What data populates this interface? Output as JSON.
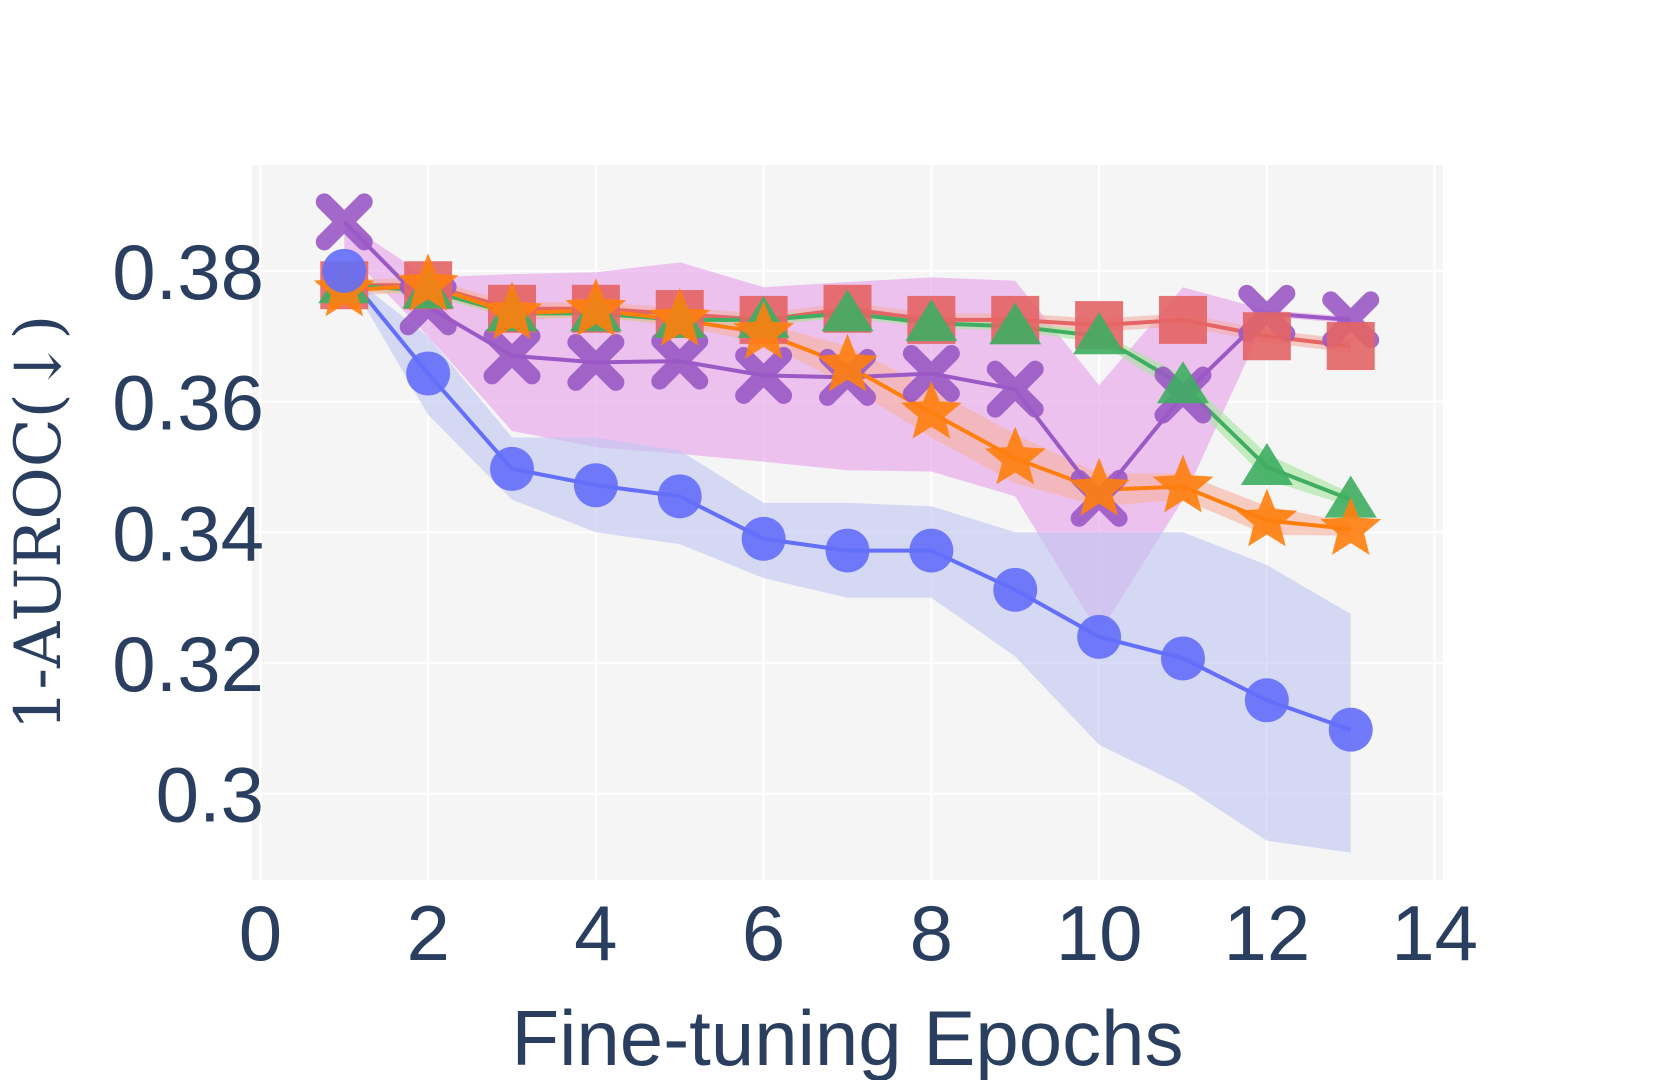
{
  "chart_data": {
    "type": "line",
    "xlabel": "Fine-tuning Epochs",
    "ylabel": "1-AUROC(↓)",
    "xlim": [
      -0.1,
      14.1
    ],
    "ylim": [
      0.2868,
      0.3962
    ],
    "x_ticks": [
      "0",
      "2",
      "4",
      "6",
      "8",
      "10",
      "12",
      "14"
    ],
    "y_ticks": [
      "0.3",
      "0.32",
      "0.34",
      "0.36",
      "0.38"
    ],
    "grid": true,
    "plot_background": "#f5f5f5",
    "series": [
      {
        "marker": "x",
        "color": "#9b59c6",
        "fill": "#e7a2ea",
        "x": [
          1,
          2,
          3,
          4,
          5,
          6,
          7,
          8,
          9,
          10,
          11,
          12,
          13
        ],
        "values": [
          0.3875,
          0.3745,
          0.367,
          0.366,
          0.3662,
          0.364,
          0.3637,
          0.3643,
          0.3619,
          0.3452,
          0.361,
          0.3735,
          0.3725
        ],
        "upper": [
          0.3875,
          0.379,
          0.3795,
          0.3798,
          0.3813,
          0.3775,
          0.3783,
          0.379,
          0.3785,
          0.3625,
          0.3775,
          0.374,
          0.373
        ],
        "lower": [
          0.3833,
          0.37,
          0.3555,
          0.353,
          0.352,
          0.3508,
          0.3495,
          0.3493,
          0.3455,
          0.3245,
          0.345,
          0.373,
          0.372
        ]
      },
      {
        "marker": "square",
        "color": "#e56565",
        "fill": "#f3b0a8",
        "x": [
          1,
          2,
          3,
          4,
          5,
          6,
          7,
          8,
          9,
          10,
          11,
          12,
          13
        ],
        "values": [
          0.3778,
          0.3778,
          0.3742,
          0.3742,
          0.3734,
          0.3725,
          0.3742,
          0.3725,
          0.3725,
          0.3717,
          0.3725,
          0.37,
          0.3685
        ],
        "upper": [
          0.3788,
          0.3788,
          0.3752,
          0.3752,
          0.3744,
          0.3735,
          0.3752,
          0.3735,
          0.3735,
          0.3727,
          0.3735,
          0.371,
          0.3695
        ],
        "lower": [
          0.3768,
          0.3768,
          0.3732,
          0.3732,
          0.3724,
          0.3715,
          0.3732,
          0.3715,
          0.3715,
          0.3707,
          0.3715,
          0.369,
          0.3675
        ]
      },
      {
        "marker": "triangle-up",
        "color": "#3fae62",
        "fill": "#a6e6a0",
        "x": [
          1,
          2,
          3,
          4,
          5,
          6,
          7,
          8,
          9,
          10,
          11,
          12,
          13
        ],
        "values": [
          0.3778,
          0.377,
          0.3735,
          0.3735,
          0.3725,
          0.3725,
          0.3735,
          0.372,
          0.3715,
          0.37,
          0.3625,
          0.35,
          0.345
        ],
        "upper": [
          0.3785,
          0.3778,
          0.3742,
          0.3742,
          0.3732,
          0.3732,
          0.3742,
          0.3727,
          0.3722,
          0.3707,
          0.364,
          0.352,
          0.346
        ],
        "lower": [
          0.3771,
          0.3762,
          0.3728,
          0.3728,
          0.3718,
          0.3718,
          0.3728,
          0.3713,
          0.3708,
          0.369,
          0.361,
          0.348,
          0.344
        ]
      },
      {
        "marker": "star",
        "color": "#ff7f0e",
        "fill": "#f7b3a0",
        "x": [
          1,
          2,
          3,
          4,
          5,
          6,
          7,
          8,
          9,
          10,
          11,
          12,
          13
        ],
        "values": [
          0.377,
          0.3778,
          0.3735,
          0.374,
          0.3725,
          0.3705,
          0.3655,
          0.3583,
          0.3513,
          0.3465,
          0.347,
          0.3418,
          0.3405
        ],
        "upper": [
          0.3778,
          0.3788,
          0.3745,
          0.375,
          0.3735,
          0.372,
          0.3685,
          0.362,
          0.355,
          0.349,
          0.349,
          0.344,
          0.3415
        ],
        "lower": [
          0.3762,
          0.3768,
          0.3725,
          0.373,
          0.3715,
          0.369,
          0.3625,
          0.3545,
          0.3475,
          0.344,
          0.345,
          0.3396,
          0.3395
        ]
      },
      {
        "marker": "circle",
        "color": "#636efa",
        "fill": "#c1c6f0",
        "x": [
          1,
          2,
          3,
          4,
          5,
          6,
          7,
          8,
          9,
          10,
          11,
          12,
          13
        ],
        "values": [
          0.38,
          0.3643,
          0.3497,
          0.3472,
          0.3455,
          0.339,
          0.3372,
          0.3372,
          0.3312,
          0.324,
          0.3207,
          0.3143,
          0.3098
        ],
        "upper": [
          0.38,
          0.37,
          0.3545,
          0.3545,
          0.3525,
          0.3445,
          0.3445,
          0.344,
          0.34,
          0.34,
          0.34,
          0.335,
          0.3275
        ],
        "lower": [
          0.38,
          0.358,
          0.345,
          0.34,
          0.3382,
          0.333,
          0.33,
          0.33,
          0.321,
          0.3075,
          0.3012,
          0.2928,
          0.291
        ]
      }
    ]
  }
}
